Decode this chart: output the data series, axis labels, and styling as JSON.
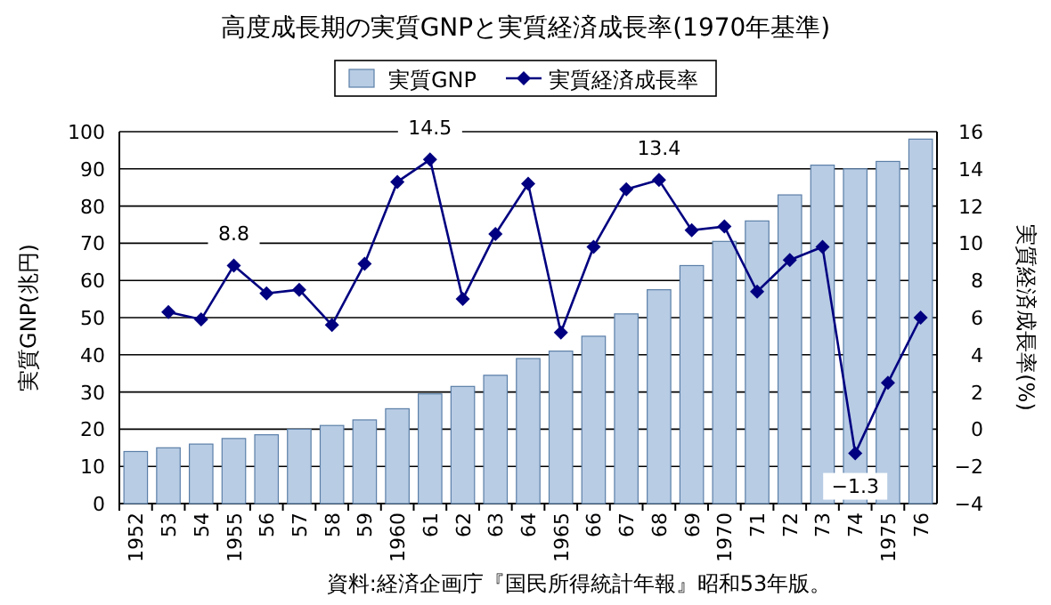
{
  "chart_data": {
    "type": "bar",
    "title": "高度成長期の実質GNPと実質経済成長率(1970年基準)",
    "ylabel": "実質GNP(兆円)",
    "y2label": "実質経済成長率(%)",
    "annotations": [
      "資料:経済企画庁『国民所得統計年報』昭和53年版。"
    ],
    "categories": [
      "1952",
      "53",
      "54",
      "1955",
      "56",
      "57",
      "58",
      "59",
      "1960",
      "61",
      "62",
      "63",
      "64",
      "1965",
      "66",
      "67",
      "68",
      "69",
      "1970",
      "71",
      "72",
      "73",
      "74",
      "1975",
      "76"
    ],
    "series": [
      {
        "name": "実質GNP",
        "color": "#b8cce4",
        "values": [
          14,
          15,
          16,
          17.5,
          18.5,
          20,
          21,
          22.5,
          25.5,
          29.5,
          31.5,
          34.5,
          39,
          41,
          45,
          51,
          57.5,
          64,
          70.5,
          76,
          83,
          91,
          90,
          92,
          98
        ]
      },
      {
        "name": "実質経済成長率",
        "type": "line",
        "axis": "y2",
        "color": "#000080",
        "marker": "diamond",
        "values": [
          null,
          6.3,
          5.9,
          8.8,
          7.3,
          7.5,
          5.6,
          8.9,
          13.3,
          14.5,
          7.0,
          10.5,
          13.2,
          5.2,
          9.8,
          12.9,
          13.4,
          10.7,
          10.9,
          7.4,
          9.1,
          9.8,
          -1.3,
          2.5,
          6.0
        ],
        "value_labels": [
          null,
          null,
          null,
          "8.8",
          null,
          null,
          null,
          null,
          null,
          "14.5",
          null,
          null,
          null,
          null,
          null,
          null,
          "13.4",
          null,
          null,
          null,
          null,
          null,
          "−1.3",
          null,
          null
        ]
      }
    ],
    "ylim": [
      0,
      100
    ],
    "yticks": [
      0,
      10,
      20,
      30,
      40,
      50,
      60,
      70,
      80,
      90,
      100
    ],
    "y2lim": [
      -4,
      16
    ],
    "y2ticks": [
      -4,
      -2,
      0,
      2,
      4,
      6,
      8,
      10,
      12,
      14,
      16
    ],
    "grid": "y",
    "legend": "top"
  }
}
